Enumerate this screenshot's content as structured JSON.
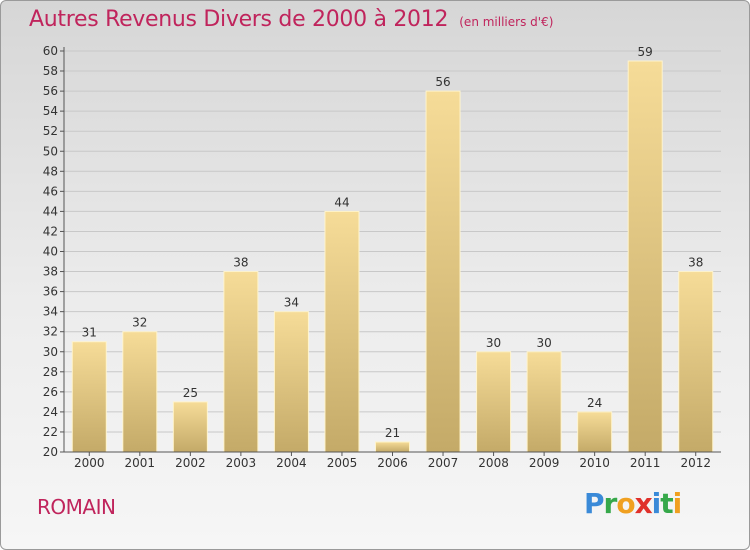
{
  "title": "Autres Revenus Divers de 2000 à 2012",
  "unit": "(en milliers d'€)",
  "place": "ROMAIN",
  "logo": {
    "icon": "proxiti-logo",
    "text": "Proxiti"
  },
  "colors": {
    "title": "#c0245c",
    "bar_light": "#f6dc98",
    "bar_dark": "#c4aa68",
    "axis": "#555555"
  },
  "chart_data": {
    "type": "bar",
    "title": "Autres Revenus Divers de 2000 à 2012",
    "subtitle": "(en milliers d'€)",
    "xlabel": "",
    "ylabel": "",
    "categories": [
      "2000",
      "2001",
      "2002",
      "2003",
      "2004",
      "2005",
      "2006",
      "2007",
      "2008",
      "2009",
      "2010",
      "2011",
      "2012"
    ],
    "values": [
      31,
      32,
      25,
      38,
      34,
      44,
      21,
      56,
      30,
      30,
      24,
      59,
      38
    ],
    "data_labels": [
      "31",
      "32",
      "25",
      "38",
      "34",
      "44",
      "21",
      "56",
      "30",
      "30",
      "24",
      "59",
      "38"
    ],
    "ylim": [
      20,
      60
    ],
    "yticks": [
      "20",
      "22",
      "24",
      "26",
      "28",
      "30",
      "32",
      "34",
      "36",
      "38",
      "40",
      "42",
      "44",
      "46",
      "48",
      "50",
      "52",
      "54",
      "56",
      "58",
      "60"
    ],
    "grid": true
  }
}
